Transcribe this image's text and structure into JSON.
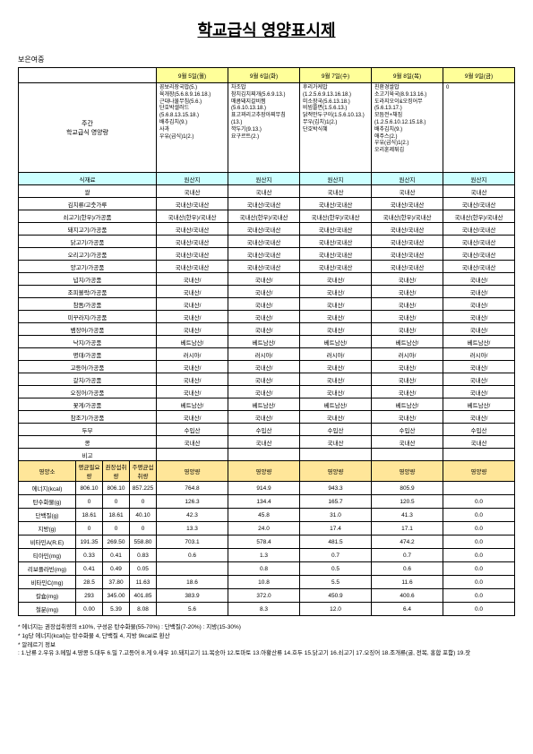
{
  "title": "학교급식 영양표시제",
  "subtitle": "보은여중",
  "weekly_label": "주간\n학교급식 영양량",
  "days": [
    "9월 5일(월)",
    "9월 6일(화)",
    "9월 7일(수)",
    "9월 8일(목)",
    "9월 9일(금)"
  ],
  "menus": [
    "꽁보리장국밥(5.)\n육개장(5.6.8.9.16.18.)\n근대나물무침(5.6.)\n단호박샐러드(5.6.8.13.15.18.)\n배추김치(9.)\n사과\n우유(급식)1(2.)",
    "차조밥\n참치김치찌개(5.6.9.13.)\n매콤돼지갈비찜(5.6.10.13.18.)\n표고꽈리고추장아찌무침(13.)\n깍두기(9.13.)\n요구르트(2.)",
    "후리가케밥(1.2.5.6.9.13.16.18.)\n미소장국(5.6.13.18.)\n비빔쫄면(1.5.6.13.)\n닭적만두구이(1.5.6.10.13.)\n무우(김치)1(2.)\n단호박식혜",
    "친환경쌀밥\n소고기육국(8.9.13.16.)\n도라지오이&오징어무(5.6.13.17.)\n모듬전+채짐(1.2.5.6.10.12.15.18.)\n배추김치(9.)\n애주스(2.)\n우유(급식)1(2.)\n오리훈제튀김",
    "0"
  ],
  "origin_header_label": "식재료",
  "origin_header_day": "원산지",
  "origin_rows": [
    {
      "label": "쌀",
      "vals": [
        "국내산",
        "국내산",
        "국내산",
        "국내산",
        "국내산"
      ]
    },
    {
      "label": "김치류/고춧가루",
      "vals": [
        "국내산/국내산",
        "국내산/국내산",
        "국내산/국내산",
        "국내산/국내산",
        "국내산/국내산"
      ]
    },
    {
      "label": "쇠고기(한우)/가공품",
      "vals": [
        "국내산(한우)/국내산",
        "국내산(한우)/국내산",
        "국내산(한우)/국내산",
        "국내산(한우)/국내산",
        "국내산(한우)/국내산"
      ]
    },
    {
      "label": "돼지고기/가공품",
      "vals": [
        "국내산/국내산",
        "국내산/국내산",
        "국내산/국내산",
        "국내산/국내산",
        "국내산/국내산"
      ]
    },
    {
      "label": "닭고기/가공품",
      "vals": [
        "국내산/국내산",
        "국내산/국내산",
        "국내산/국내산",
        "국내산/국내산",
        "국내산/국내산"
      ]
    },
    {
      "label": "오리고기/가공품",
      "vals": [
        "국내산/국내산",
        "국내산/국내산",
        "국내산/국내산",
        "국내산/국내산",
        "국내산/국내산"
      ]
    },
    {
      "label": "양고기/가공품",
      "vals": [
        "국내산/국내산",
        "국내산/국내산",
        "국내산/국내산",
        "국내산/국내산",
        "국내산/국내산"
      ]
    },
    {
      "label": "넙치/가공품",
      "vals": [
        "국내산/",
        "국내산/",
        "국내산/",
        "국내산/",
        "국내산/"
      ]
    },
    {
      "label": "조피볼락/가공품",
      "vals": [
        "국내산/",
        "국내산/",
        "국내산/",
        "국내산/",
        "국내산/"
      ]
    },
    {
      "label": "참돔/가공품",
      "vals": [
        "국내산/",
        "국내산/",
        "국내산/",
        "국내산/",
        "국내산/"
      ]
    },
    {
      "label": "미꾸라지/가공품",
      "vals": [
        "국내산/",
        "국내산/",
        "국내산/",
        "국내산/",
        "국내산/"
      ]
    },
    {
      "label": "뱀장어/가공품",
      "vals": [
        "국내산/",
        "국내산/",
        "국내산/",
        "국내산/",
        "국내산/"
      ]
    },
    {
      "label": "낙지/가공품",
      "vals": [
        "베트남산/",
        "베트남산/",
        "베트남산/",
        "베트남산/",
        "베트남산/"
      ]
    },
    {
      "label": "명태/가공품",
      "vals": [
        "러시아/",
        "러시아/",
        "러시아/",
        "러시아/",
        "러시아/"
      ]
    },
    {
      "label": "고등어/가공품",
      "vals": [
        "국내산/",
        "국내산/",
        "국내산/",
        "국내산/",
        "국내산/"
      ]
    },
    {
      "label": "갈치/가공품",
      "vals": [
        "국내산/",
        "국내산/",
        "국내산/",
        "국내산/",
        "국내산/"
      ]
    },
    {
      "label": "오징어/가공품",
      "vals": [
        "국내산/",
        "국내산/",
        "국내산/",
        "국내산/",
        "국내산/"
      ]
    },
    {
      "label": "꽃게/가공품",
      "vals": [
        "베트남산/",
        "베트남산/",
        "베트남산/",
        "베트남산/",
        "베트남산/"
      ]
    },
    {
      "label": "참조기/가공품",
      "vals": [
        "국내산/",
        "국내산/",
        "국내산/",
        "국내산/",
        "국내산/"
      ]
    },
    {
      "label": "두부",
      "vals": [
        "수입산",
        "수입산",
        "수입산",
        "수입산",
        "수입산"
      ]
    },
    {
      "label": "콩",
      "vals": [
        "국내산",
        "국내산",
        "국내산",
        "국내산",
        "국내산"
      ]
    },
    {
      "label": "비고",
      "vals": [
        "",
        "",
        "",
        "",
        ""
      ]
    }
  ],
  "nutri_headers": [
    "영양소",
    "평균필요량",
    "권장섭취량",
    "주평균섭취량",
    "영양량",
    "영양량",
    "영양량",
    "영양량",
    "영양량"
  ],
  "nutri_rows": [
    {
      "label": "에너지(kcal)",
      "a": "806.10",
      "b": "806.10",
      "c": "857.225",
      "vals": [
        "764.8",
        "914.9",
        "943.3",
        "805.9",
        ""
      ]
    },
    {
      "label": "탄수화물(g)",
      "a": "0",
      "b": "0",
      "c": "0",
      "vals": [
        "126.3",
        "134.4",
        "165.7",
        "120.5",
        "0.0"
      ]
    },
    {
      "label": "단백질(g)",
      "a": "18.61",
      "b": "18.61",
      "c": "40.10",
      "vals": [
        "42.3",
        "45.8",
        "31.0",
        "41.3",
        "0.0"
      ]
    },
    {
      "label": "지방(g)",
      "a": "0",
      "b": "0",
      "c": "0",
      "vals": [
        "13.3",
        "24.0",
        "17.4",
        "17.1",
        "0.0"
      ]
    },
    {
      "label": "비타민A(R.E)",
      "a": "191.35",
      "b": "269.50",
      "c": "558.80",
      "vals": [
        "703.1",
        "578.4",
        "481.5",
        "474.2",
        "0.0"
      ]
    },
    {
      "label": "티아민(mg)",
      "a": "0.33",
      "b": "0.41",
      "c": "0.83",
      "vals": [
        "0.6",
        "1.3",
        "0.7",
        "0.7",
        "0.0"
      ]
    },
    {
      "label": "리보플라빈(mg)",
      "a": "0.41",
      "b": "0.49",
      "c": "0.05",
      "vals": [
        "",
        "0.8",
        "0.5",
        "0.6",
        "0.0"
      ]
    },
    {
      "label": "비타민C(mg)",
      "a": "28.5",
      "b": "37.80",
      "c": "11.63",
      "vals": [
        "18.6",
        "10.8",
        "5.5",
        "11.6",
        "0.0"
      ]
    },
    {
      "label": "칼슘(mg)",
      "a": "293",
      "b": "345.00",
      "c": "401.85",
      "vals": [
        "383.9",
        "372.0",
        "450.9",
        "400.6",
        "0.0"
      ]
    },
    {
      "label": "철분(mg)",
      "a": "0.00",
      "b": "5.39",
      "c": "8.08",
      "vals": [
        "5.6",
        "8.3",
        "12.0",
        "6.4",
        "0.0"
      ]
    }
  ],
  "footer": [
    "* 에너지는 권장섭취량의 ±10%, 구성은 탄수화물(55-70%) : 단백질(7-20%) : 지방(15-30%)",
    "* 1g당 에너지(kcal)는 탄수화물 4, 단백질 4, 지방 9kcal로 환산",
    "* 알레르기 정보",
    "  : 1.난류 2.우유 3.메밀 4.땅콩 5.대두 6.밀 7.고등어 8.게 9.새우 10.돼지고기 11.복숭아 12.토마토 13.아황산류 14.호두 15.닭고기 16.쇠고기 17.오징어 18.조개류(굴, 전복, 홍합 포함) 19.잣"
  ]
}
